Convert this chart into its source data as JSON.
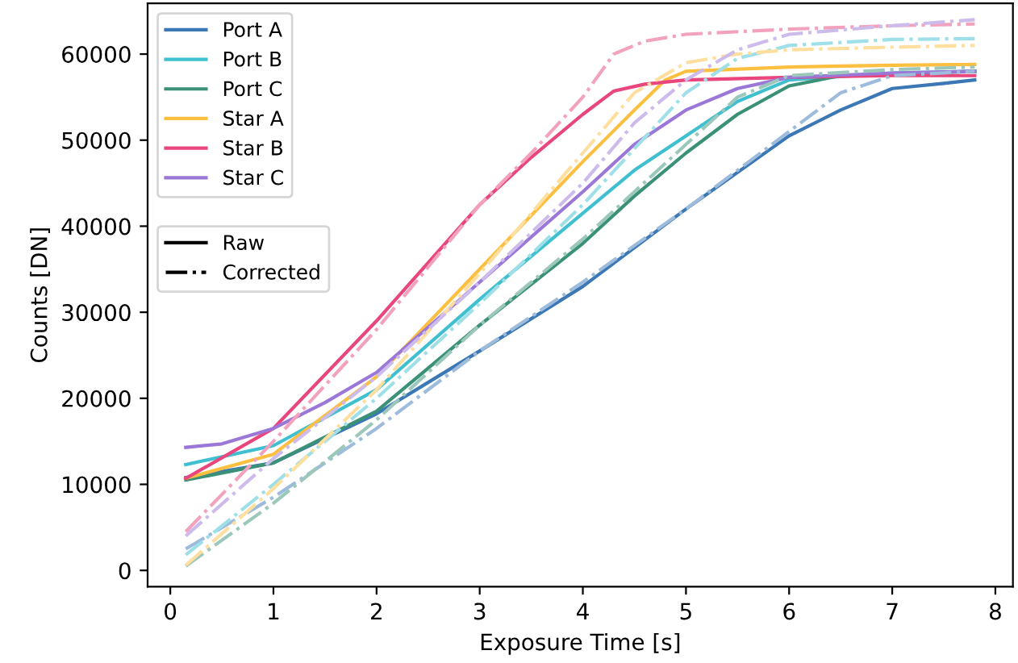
{
  "chart_data": {
    "type": "line",
    "xlabel": "Exposure Time [s]",
    "ylabel": "Counts [DN]",
    "xlim": [
      -0.22,
      8.17
    ],
    "ylim": [
      -1900,
      65900
    ],
    "xticks": [
      0,
      1,
      2,
      3,
      4,
      5,
      6,
      7,
      8
    ],
    "yticks": [
      0,
      10000,
      20000,
      30000,
      40000,
      50000,
      60000
    ],
    "grid": false,
    "legend": "top left",
    "marker": "none",
    "annotations": [
      "Raw",
      "Corrected"
    ],
    "series": [
      {
        "name": "Port A",
        "color": "#3b78b5",
        "line_style": "solid",
        "x": [
          0.15,
          1,
          2,
          3,
          4,
          5,
          6,
          6.5,
          7,
          7.5,
          7.8
        ],
        "values": [
          10800,
          12500,
          18200,
          25500,
          33000,
          42000,
          50500,
          53500,
          56000,
          56600,
          57000
        ]
      },
      {
        "name": "Port B",
        "color": "#3fbfcf",
        "line_style": "solid",
        "x": [
          0.15,
          1,
          2,
          3,
          4,
          4.5,
          5,
          5.5,
          6,
          7,
          7.8
        ],
        "values": [
          12300,
          14500,
          21000,
          31500,
          41500,
          46500,
          50500,
          54500,
          57000,
          57800,
          58000
        ]
      },
      {
        "name": "Port C",
        "color": "#3a9178",
        "line_style": "solid",
        "x": [
          0.15,
          1,
          2,
          3,
          4,
          4.5,
          5,
          5.5,
          6,
          6.5,
          7.8
        ],
        "values": [
          10500,
          12500,
          18500,
          28500,
          38000,
          43500,
          48500,
          53000,
          56300,
          57500,
          58000
        ]
      },
      {
        "name": "Star A",
        "color": "#fdbf40",
        "line_style": "solid",
        "x": [
          0.15,
          1,
          2,
          3,
          4,
          4.5,
          4.8,
          5,
          6,
          7,
          7.8
        ],
        "values": [
          10700,
          13500,
          22500,
          35000,
          47500,
          53500,
          57000,
          58000,
          58500,
          58700,
          58800
        ]
      },
      {
        "name": "Star B",
        "color": "#e8467c",
        "line_style": "solid",
        "x": [
          0.15,
          1,
          2,
          3,
          3.5,
          4,
          4.3,
          4.6,
          5,
          6,
          7,
          7.8
        ],
        "values": [
          10700,
          16500,
          29000,
          42500,
          48000,
          53000,
          55700,
          56500,
          57000,
          57300,
          57500,
          57500
        ]
      },
      {
        "name": "Star C",
        "color": "#9b78d8",
        "line_style": "solid",
        "x": [
          0.15,
          0.5,
          1,
          1.5,
          2,
          3,
          4,
          4.5,
          5,
          5.5,
          6,
          7,
          7.8
        ],
        "values": [
          14300,
          14700,
          16500,
          19500,
          23000,
          33500,
          44000,
          49500,
          53500,
          56000,
          57300,
          57800,
          58000
        ]
      },
      {
        "color": "#9dbbda",
        "line_style": "dashdot",
        "x": [
          0.15,
          1,
          2,
          3,
          4,
          5,
          6,
          6.5,
          7,
          7.8
        ],
        "values": [
          2500,
          8500,
          16500,
          25500,
          33500,
          42000,
          51000,
          55500,
          57500,
          58000
        ]
      },
      {
        "color": "#9fdfe7",
        "line_style": "dashdot",
        "x": [
          0.15,
          1,
          2,
          3,
          4,
          4.5,
          5,
          5.5,
          6,
          7,
          7.8
        ],
        "values": [
          1800,
          10000,
          20000,
          31000,
          42500,
          49000,
          55500,
          59500,
          61000,
          61700,
          61800
        ]
      },
      {
        "color": "#9cc8bb",
        "line_style": "dashdot",
        "x": [
          0.15,
          1,
          2,
          3,
          4,
          5,
          5.5,
          6,
          7,
          7.8
        ],
        "values": [
          500,
          7800,
          17500,
          28500,
          38500,
          49500,
          55000,
          57500,
          58200,
          58500
        ]
      },
      {
        "color": "#fedf9f",
        "line_style": "dashdot",
        "x": [
          0.15,
          1,
          2,
          3,
          4,
          4.5,
          5,
          5.5,
          6,
          7,
          7.8
        ],
        "values": [
          600,
          9500,
          21000,
          34500,
          48500,
          55500,
          59000,
          60000,
          60500,
          60800,
          61000
        ]
      },
      {
        "color": "#f3a2bd",
        "line_style": "dashdot",
        "x": [
          0.15,
          1,
          2,
          3,
          3.5,
          4,
          4.3,
          4.6,
          5,
          6,
          7,
          7.8
        ],
        "values": [
          4500,
          15000,
          28000,
          42500,
          48500,
          55000,
          60000,
          61500,
          62300,
          62900,
          63300,
          63500
        ]
      },
      {
        "color": "#cdbbeb",
        "line_style": "dashdot",
        "x": [
          0.15,
          1,
          2,
          3,
          4,
          4.5,
          5,
          5.5,
          6,
          7,
          7.8
        ],
        "values": [
          4000,
          13000,
          22500,
          33500,
          45000,
          52000,
          57000,
          60500,
          62300,
          63300,
          64000
        ]
      }
    ]
  }
}
